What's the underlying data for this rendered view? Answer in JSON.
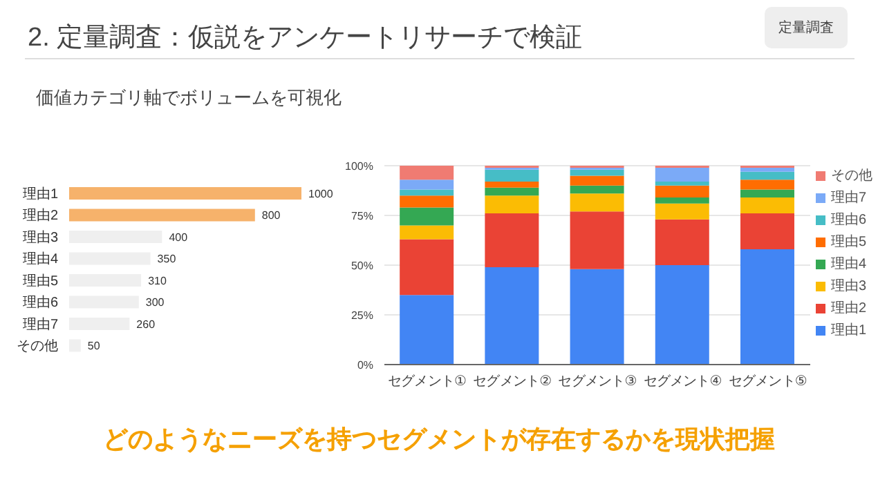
{
  "chart_data": [
    {
      "type": "bar",
      "orientation": "horizontal",
      "title": "2. 定量調査：仮説をアンケートリサーチで検証",
      "subtitle": "価値カテゴリ軸でボリュームを可視化",
      "annotations": [
        "定量調査",
        "どのようなニーズを持つセグメントが存在するかを現状把握"
      ],
      "categories": [
        "理由1",
        "理由2",
        "理由3",
        "理由4",
        "理由5",
        "理由6",
        "理由7",
        "その他"
      ],
      "values": [
        1000,
        800,
        400,
        350,
        310,
        300,
        260,
        50
      ],
      "colors": [
        "#f6b26b",
        "#f6b26b",
        "#efefef",
        "#efefef",
        "#efefef",
        "#efefef",
        "#efefef",
        "#efefef"
      ],
      "data_labels": true,
      "tick_labels": "y",
      "grid": false
    },
    {
      "type": "bar",
      "stacked": true,
      "categories": [
        "セグメント①",
        "セグメント②",
        "セグメント③",
        "セグメント④",
        "セグメント⑤"
      ],
      "series": [
        {
          "name": "理由1",
          "color": "#4285f4",
          "values": [
            35,
            49,
            48,
            50,
            58
          ]
        },
        {
          "name": "理由2",
          "color": "#ea4335",
          "values": [
            28,
            27,
            29,
            23,
            18
          ]
        },
        {
          "name": "理由3",
          "color": "#fbbc04",
          "values": [
            7,
            9,
            9,
            8,
            8
          ]
        },
        {
          "name": "理由4",
          "color": "#34a853",
          "values": [
            9,
            4,
            4,
            3,
            4
          ]
        },
        {
          "name": "理由5",
          "color": "#ff6d01",
          "values": [
            6,
            3,
            5,
            6,
            5
          ]
        },
        {
          "name": "理由6",
          "color": "#46bdc6",
          "values": [
            3,
            6,
            3,
            2,
            4
          ]
        },
        {
          "name": "理由7",
          "color": "#7baaf7",
          "values": [
            5,
            1,
            1,
            7,
            2
          ]
        },
        {
          "name": "その他",
          "color": "#f07b72",
          "values": [
            7,
            1,
            1,
            1,
            1
          ]
        }
      ],
      "ylim": [
        0,
        100
      ],
      "yticks": [
        {
          "value": 0,
          "label": "0%"
        },
        {
          "value": 25,
          "label": "25%"
        },
        {
          "value": 50,
          "label": "50%"
        },
        {
          "value": 75,
          "label": "75%"
        },
        {
          "value": 100,
          "label": "100%"
        }
      ],
      "grid": "y",
      "legend": "right"
    }
  ]
}
